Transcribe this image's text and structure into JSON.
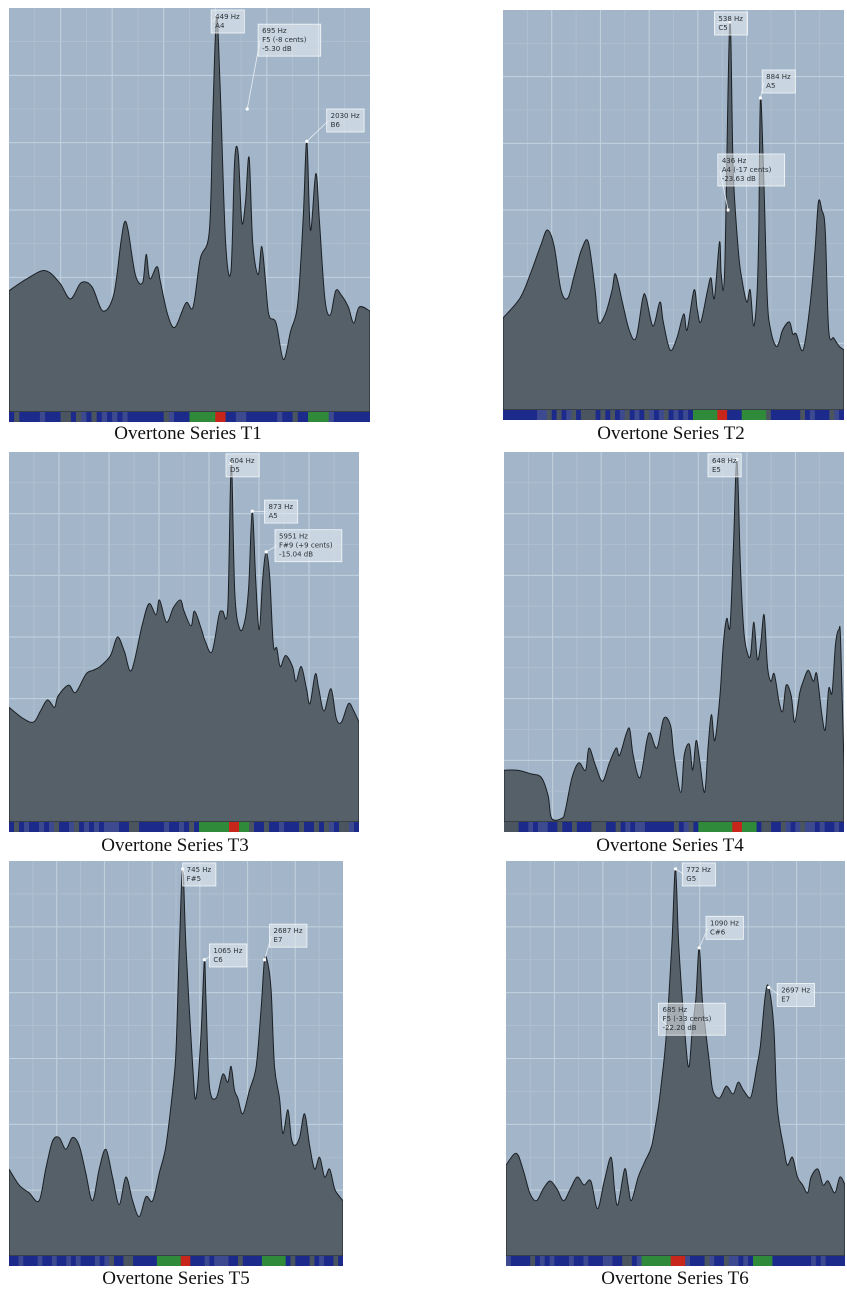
{
  "colors": {
    "plot_background": "#a3b6c9",
    "spectrum_fill": "#566069",
    "spectrum_outline": "#1a1f24",
    "label_box": "#e9eef3",
    "strip_low": "#1c2a8c",
    "strip_mid": "#2f8a3a",
    "strip_high": "#c8261b"
  },
  "chart_data": [
    {
      "type": "area",
      "title": "Overtone Series T1",
      "annotations": [
        {
          "lines": [
            "449 Hz",
            "A4"
          ]
        },
        {
          "lines": [
            "695 Hz",
            "F5 (-8 cents)",
            "-5.30 dB"
          ]
        },
        {
          "lines": [
            "2030 Hz",
            "B6"
          ]
        }
      ]
    },
    {
      "type": "area",
      "title": "Overtone Series T2",
      "annotations": [
        {
          "lines": [
            "538 Hz",
            "C5"
          ]
        },
        {
          "lines": [
            "884 Hz",
            "A5"
          ]
        },
        {
          "lines": [
            "436 Hz",
            "A4 (-17 cents)",
            "-23.63 dB"
          ]
        }
      ]
    },
    {
      "type": "area",
      "title": "Overtone Series T3",
      "annotations": [
        {
          "lines": [
            "604 Hz",
            "D5"
          ]
        },
        {
          "lines": [
            "873 Hz",
            "A5"
          ]
        },
        {
          "lines": [
            "5951 Hz",
            "F#9 (+9 cents)",
            "-15.04 dB"
          ]
        }
      ]
    },
    {
      "type": "area",
      "title": "Overtone Series T4",
      "annotations": [
        {
          "lines": [
            "648 Hz",
            "E5"
          ]
        }
      ]
    },
    {
      "type": "area",
      "title": "Overtone Series T5",
      "annotations": [
        {
          "lines": [
            "745 Hz",
            "F#5"
          ]
        },
        {
          "lines": [
            "1065 Hz",
            "C6"
          ]
        },
        {
          "lines": [
            "2687 Hz",
            "E7"
          ]
        }
      ]
    },
    {
      "type": "area",
      "title": "Overtone Series T6",
      "annotations": [
        {
          "lines": [
            "772 Hz",
            "G5"
          ]
        },
        {
          "lines": [
            "1090 Hz",
            "C#6"
          ]
        },
        {
          "lines": [
            "2697 Hz",
            "E7"
          ]
        },
        {
          "lines": [
            "685 Hz",
            "F5 (-33 cents)",
            "-22.20 dB"
          ]
        }
      ]
    }
  ]
}
